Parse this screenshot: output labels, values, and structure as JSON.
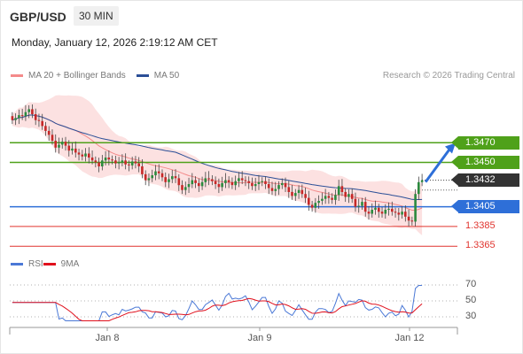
{
  "header": {
    "symbol": "GBP/USD",
    "timeframe": "30 MIN"
  },
  "timestamp": "Monday, January 12, 2026 2:19:12 AM CET",
  "legend": {
    "ma20_bb": "MA 20 + Bollinger Bands",
    "ma50": "MA 50",
    "ma20_color": "#f48a8a",
    "ma50_color": "#2b4f97"
  },
  "copyright": "Research © 2026 Trading Central",
  "rsi_legend": {
    "rsi": "RSI",
    "ma9": "9MA",
    "rsi_color": "#4a78d6",
    "ma9_color": "#e0101c"
  },
  "colors": {
    "resistance": "#4fa11a",
    "pivot": "#2e6fd8",
    "support": "#e0342e",
    "current": "#333333",
    "candle_up": "#2b8a3e",
    "candle_down": "#c62828",
    "bands": "#fbd9da",
    "arrow": "#2e6fd8"
  },
  "chart_data": {
    "type": "candlestick",
    "symbol": "GBP/USD",
    "interval": "30 MIN",
    "x_ticks": [
      "Jan 8",
      "Jan 9",
      "Jan 12"
    ],
    "ylim": [
      1.3358,
      1.3525
    ],
    "levels": [
      {
        "value": 1.347,
        "label": "1.3470",
        "kind": "resistance"
      },
      {
        "value": 1.345,
        "label": "1.3450",
        "kind": "resistance"
      },
      {
        "value": 1.3432,
        "label": "1.3432",
        "kind": "current"
      },
      {
        "value": 1.3405,
        "label": "1.3405",
        "kind": "pivot"
      },
      {
        "value": 1.3385,
        "label": "1.3385",
        "kind": "support"
      },
      {
        "value": 1.3365,
        "label": "1.3365",
        "kind": "support"
      }
    ],
    "close": [
      1.3493,
      1.3495,
      1.3498,
      1.3497,
      1.3501,
      1.3504,
      1.3499,
      1.3493,
      1.3492,
      1.3487,
      1.3482,
      1.3478,
      1.3472,
      1.3465,
      1.3468,
      1.3471,
      1.3467,
      1.3462,
      1.3464,
      1.346,
      1.3458,
      1.3456,
      1.3459,
      1.3455,
      1.3452,
      1.345,
      1.3446,
      1.3452,
      1.3455,
      1.3453,
      1.3452,
      1.3449,
      1.345,
      1.3452,
      1.3448,
      1.3447,
      1.3451,
      1.3449,
      1.3446,
      1.3438,
      1.3432,
      1.3434,
      1.3437,
      1.3441,
      1.3439,
      1.3435,
      1.343,
      1.3433,
      1.3436,
      1.3434,
      1.3427,
      1.3422,
      1.3425,
      1.3428,
      1.3432,
      1.3429,
      1.3426,
      1.343,
      1.3434,
      1.3433,
      1.3431,
      1.3428,
      1.3425,
      1.3429,
      1.3432,
      1.343,
      1.3427,
      1.3431,
      1.3434,
      1.3432,
      1.3431,
      1.3429,
      1.3426,
      1.3428,
      1.343,
      1.3431,
      1.3428,
      1.3424,
      1.3421,
      1.3423,
      1.3427,
      1.3429,
      1.3425,
      1.342,
      1.3416,
      1.3419,
      1.3422,
      1.3418,
      1.3414,
      1.3407,
      1.3404,
      1.3409,
      1.3411,
      1.3413,
      1.3416,
      1.3414,
      1.3412,
      1.3417,
      1.3426,
      1.342,
      1.3415,
      1.3418,
      1.3413,
      1.3405,
      1.3406,
      1.341,
      1.34,
      1.3398,
      1.3402,
      1.3404,
      1.34,
      1.3398,
      1.3402,
      1.3403,
      1.34,
      1.3399,
      1.3397,
      1.34,
      1.3395,
      1.3391,
      1.339,
      1.3418,
      1.343,
      1.3432
    ],
    "rsi_axis": [
      70,
      50,
      30
    ]
  }
}
